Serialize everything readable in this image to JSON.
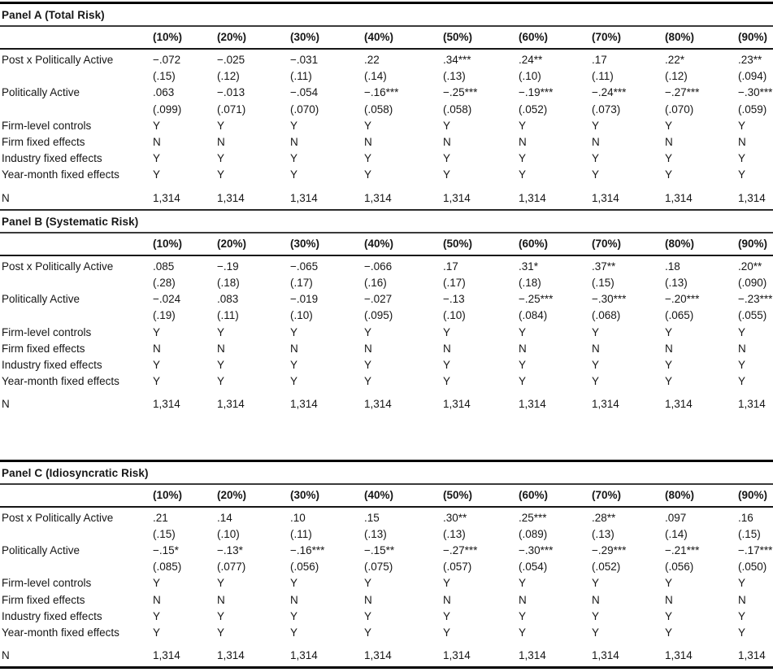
{
  "table": {
    "columns": [
      "(10%)",
      "(20%)",
      "(30%)",
      "(40%)",
      "(50%)",
      "(60%)",
      "(70%)",
      "(80%)",
      "(90%)"
    ],
    "panels": [
      {
        "title": "Panel A (Total Risk)",
        "rows": [
          {
            "type": "coef",
            "label": "Post x Politically Active",
            "cells": [
              "−.072",
              "−.025",
              "−.031",
              ".22",
              ".34***",
              ".24**",
              ".17",
              ".22*",
              ".23**"
            ]
          },
          {
            "type": "se",
            "label": "",
            "cells": [
              "(.15)",
              "(.12)",
              "(.11)",
              "(.14)",
              "(.13)",
              "(.10)",
              "(.11)",
              "(.12)",
              "(.094)"
            ]
          },
          {
            "type": "coef",
            "label": "Politically Active",
            "cells": [
              ".063",
              "−.013",
              "−.054",
              "−.16***",
              "−.25***",
              "−.19***",
              "−.24***",
              "−.27***",
              "−.30***"
            ]
          },
          {
            "type": "se",
            "label": "",
            "cells": [
              "(.099)",
              "(.071)",
              "(.070)",
              "(.058)",
              "(.058)",
              "(.052)",
              "(.073)",
              "(.070)",
              "(.059)"
            ]
          },
          {
            "type": "flag",
            "label": "Firm-level controls",
            "cells": [
              "Y",
              "Y",
              "Y",
              "Y",
              "Y",
              "Y",
              "Y",
              "Y",
              "Y"
            ]
          },
          {
            "type": "flag",
            "label": "Firm fixed effects",
            "cells": [
              "N",
              "N",
              "N",
              "N",
              "N",
              "N",
              "N",
              "N",
              "N"
            ]
          },
          {
            "type": "flag",
            "label": "Industry fixed effects",
            "cells": [
              "Y",
              "Y",
              "Y",
              "Y",
              "Y",
              "Y",
              "Y",
              "Y",
              "Y"
            ]
          },
          {
            "type": "flag",
            "label": "Year-month fixed effects",
            "cells": [
              "Y",
              "Y",
              "Y",
              "Y",
              "Y",
              "Y",
              "Y",
              "Y",
              "Y"
            ]
          },
          {
            "type": "n",
            "label": "N",
            "cells": [
              "1,314",
              "1,314",
              "1,314",
              "1,314",
              "1,314",
              "1,314",
              "1,314",
              "1,314",
              "1,314"
            ]
          }
        ]
      },
      {
        "title": "Panel B (Systematic Risk)",
        "rows": [
          {
            "type": "coef",
            "label": "Post x Politically Active",
            "cells": [
              ".085",
              "−.19",
              "−.065",
              "−.066",
              ".17",
              ".31*",
              ".37**",
              ".18",
              ".20**"
            ]
          },
          {
            "type": "se",
            "label": "",
            "cells": [
              "(.28)",
              "(.18)",
              "(.17)",
              "(.16)",
              "(.17)",
              "(.18)",
              "(.15)",
              "(.13)",
              "(.090)"
            ]
          },
          {
            "type": "coef",
            "label": "Politically Active",
            "cells": [
              "−.024",
              ".083",
              "−.019",
              "−.027",
              "−.13",
              "−.25***",
              "−.30***",
              "−.20***",
              "−.23***"
            ]
          },
          {
            "type": "se",
            "label": "",
            "cells": [
              "(.19)",
              "(.11)",
              "(.10)",
              "(.095)",
              "(.10)",
              "(.084)",
              "(.068)",
              "(.065)",
              "(.055)"
            ]
          },
          {
            "type": "flag",
            "label": "Firm-level controls",
            "cells": [
              "Y",
              "Y",
              "Y",
              "Y",
              "Y",
              "Y",
              "Y",
              "Y",
              "Y"
            ]
          },
          {
            "type": "flag",
            "label": "Firm fixed effects",
            "cells": [
              "N",
              "N",
              "N",
              "N",
              "N",
              "N",
              "N",
              "N",
              "N"
            ]
          },
          {
            "type": "flag",
            "label": "Industry fixed effects",
            "cells": [
              "Y",
              "Y",
              "Y",
              "Y",
              "Y",
              "Y",
              "Y",
              "Y",
              "Y"
            ]
          },
          {
            "type": "flag",
            "label": "Year-month fixed effects",
            "cells": [
              "Y",
              "Y",
              "Y",
              "Y",
              "Y",
              "Y",
              "Y",
              "Y",
              "Y"
            ]
          },
          {
            "type": "n",
            "label": "N",
            "cells": [
              "1,314",
              "1,314",
              "1,314",
              "1,314",
              "1,314",
              "1,314",
              "1,314",
              "1,314",
              "1,314"
            ]
          }
        ]
      },
      {
        "title": "Panel C (Idiosyncratic Risk)",
        "rows": [
          {
            "type": "coef",
            "label": "Post x Politically Active",
            "cells": [
              ".21",
              ".14",
              ".10",
              ".15",
              ".30**",
              ".25***",
              ".28**",
              ".097",
              ".16"
            ]
          },
          {
            "type": "se",
            "label": "",
            "cells": [
              "(.15)",
              "(.10)",
              "(.11)",
              "(.13)",
              "(.13)",
              "(.089)",
              "(.13)",
              "(.14)",
              "(.15)"
            ]
          },
          {
            "type": "coef",
            "label": "Politically Active",
            "cells": [
              "−.15*",
              "−.13*",
              "−.16***",
              "−.15**",
              "−.27***",
              "−.30***",
              "−.29***",
              "−.21***",
              "−.17***"
            ]
          },
          {
            "type": "se",
            "label": "",
            "cells": [
              "(.085)",
              "(.077)",
              "(.056)",
              "(.075)",
              "(.057)",
              "(.054)",
              "(.052)",
              "(.056)",
              "(.050)"
            ]
          },
          {
            "type": "flag",
            "label": "Firm-level controls",
            "cells": [
              "Y",
              "Y",
              "Y",
              "Y",
              "Y",
              "Y",
              "Y",
              "Y",
              "Y"
            ]
          },
          {
            "type": "flag",
            "label": "Firm fixed effects",
            "cells": [
              "N",
              "N",
              "N",
              "N",
              "N",
              "N",
              "N",
              "N",
              "N"
            ]
          },
          {
            "type": "flag",
            "label": "Industry fixed effects",
            "cells": [
              "Y",
              "Y",
              "Y",
              "Y",
              "Y",
              "Y",
              "Y",
              "Y",
              "Y"
            ]
          },
          {
            "type": "flag",
            "label": "Year-month fixed effects",
            "cells": [
              "Y",
              "Y",
              "Y",
              "Y",
              "Y",
              "Y",
              "Y",
              "Y",
              "Y"
            ]
          },
          {
            "type": "n",
            "label": "N",
            "cells": [
              "1,314",
              "1,314",
              "1,314",
              "1,314",
              "1,314",
              "1,314",
              "1,314",
              "1,314",
              "1,314"
            ]
          }
        ]
      }
    ],
    "text_color": "#161616",
    "rule_color": "#000000"
  }
}
